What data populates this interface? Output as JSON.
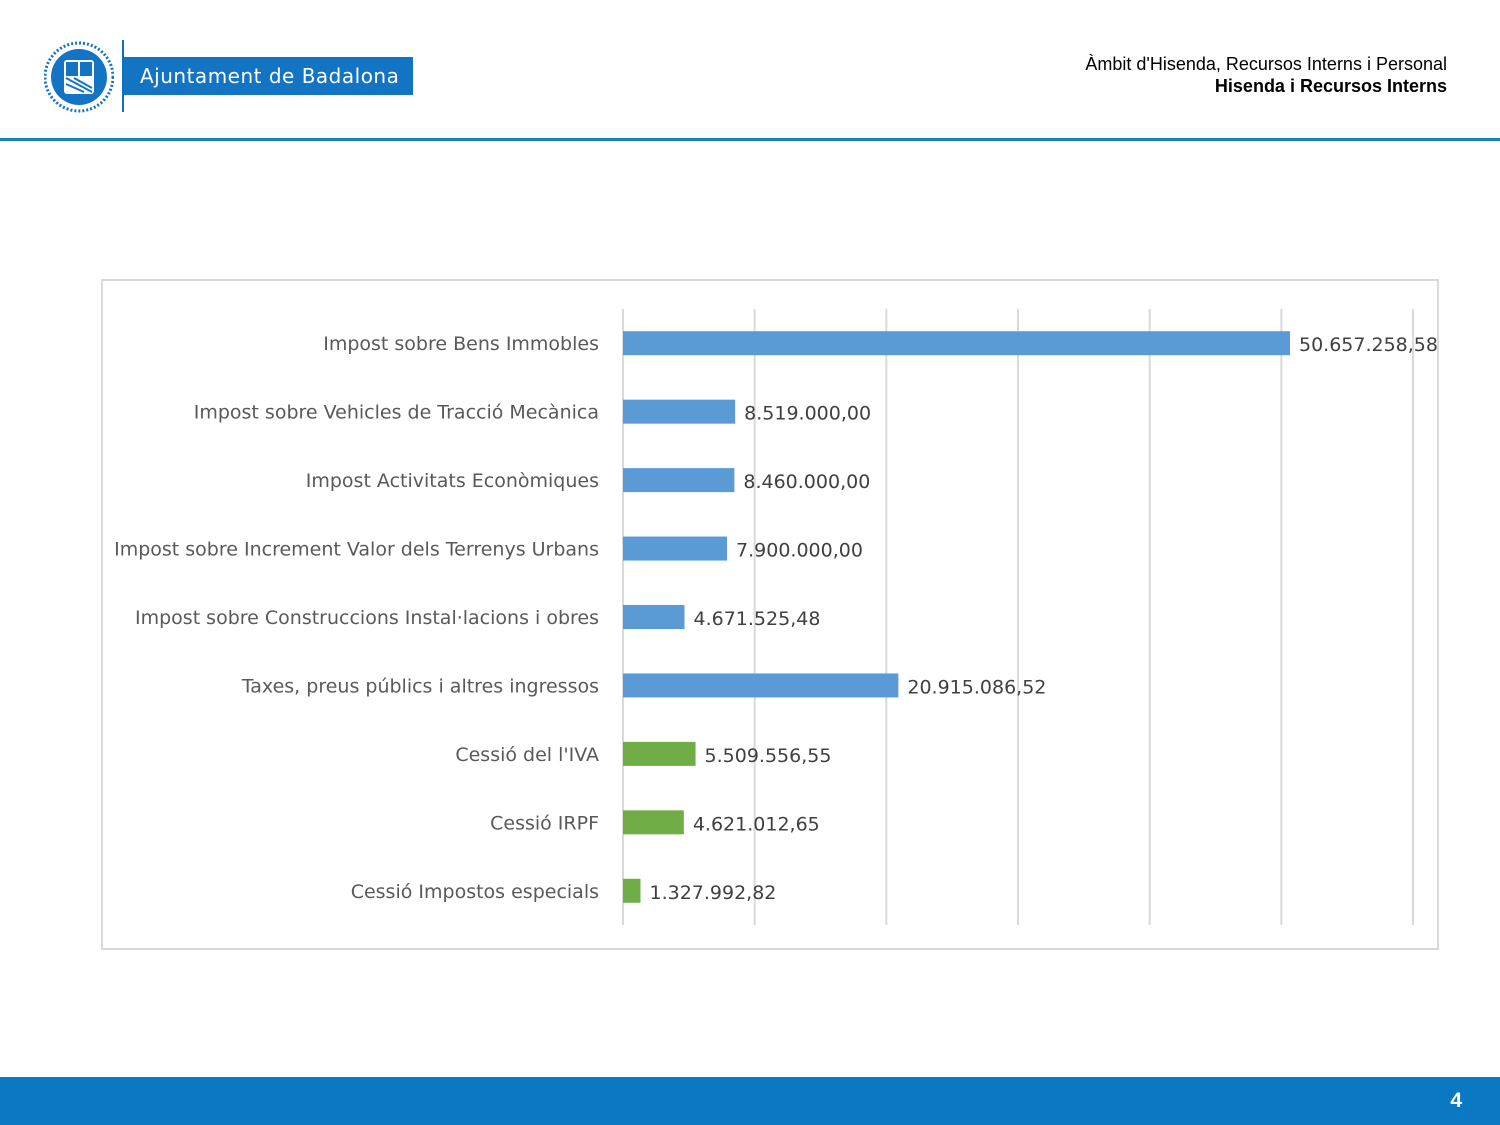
{
  "header": {
    "org_name": "Ajuntament de Badalona",
    "line1": "Àmbit d'Hisenda, Recursos Interns i Personal",
    "line2": "Hisenda i Recursos Interns"
  },
  "colors": {
    "brand_blue": "#1474c4",
    "bar_blue": "#5b9bd5",
    "bar_green": "#70ad47"
  },
  "chart_data": {
    "type": "bar",
    "orientation": "horizontal",
    "title": "",
    "xlabel": "",
    "ylabel": "",
    "xlim": [
      0,
      60000000
    ],
    "grid": true,
    "categories": [
      "Impost sobre Bens Immobles",
      "Impost sobre Vehicles de Tracció Mecànica",
      "Impost Activitats Econòmiques",
      "Impost sobre Increment Valor dels Terrenys Urbans",
      "Impost sobre Construccions Instal·lacions i obres",
      "Taxes, preus públics i altres ingressos",
      "Cessió del l'IVA",
      "Cessió IRPF",
      "Cessió Impostos especials"
    ],
    "values": [
      50657258.58,
      8519000.0,
      8460000.0,
      7900000.0,
      4671525.48,
      20915086.52,
      5509556.55,
      4621012.65,
      1327992.82
    ],
    "data_labels": [
      "50.657.258,58",
      "8.519.000,00",
      "8.460.000,00",
      "7.900.000,00",
      "4.671.525,48",
      "20.915.086,52",
      "5.509.556,55",
      "4.621.012,65",
      "1.327.992,82"
    ],
    "bar_colors": [
      "#5b9bd5",
      "#5b9bd5",
      "#5b9bd5",
      "#5b9bd5",
      "#5b9bd5",
      "#5b9bd5",
      "#70ad47",
      "#70ad47",
      "#70ad47"
    ]
  },
  "footer": {
    "page_number": "4"
  }
}
